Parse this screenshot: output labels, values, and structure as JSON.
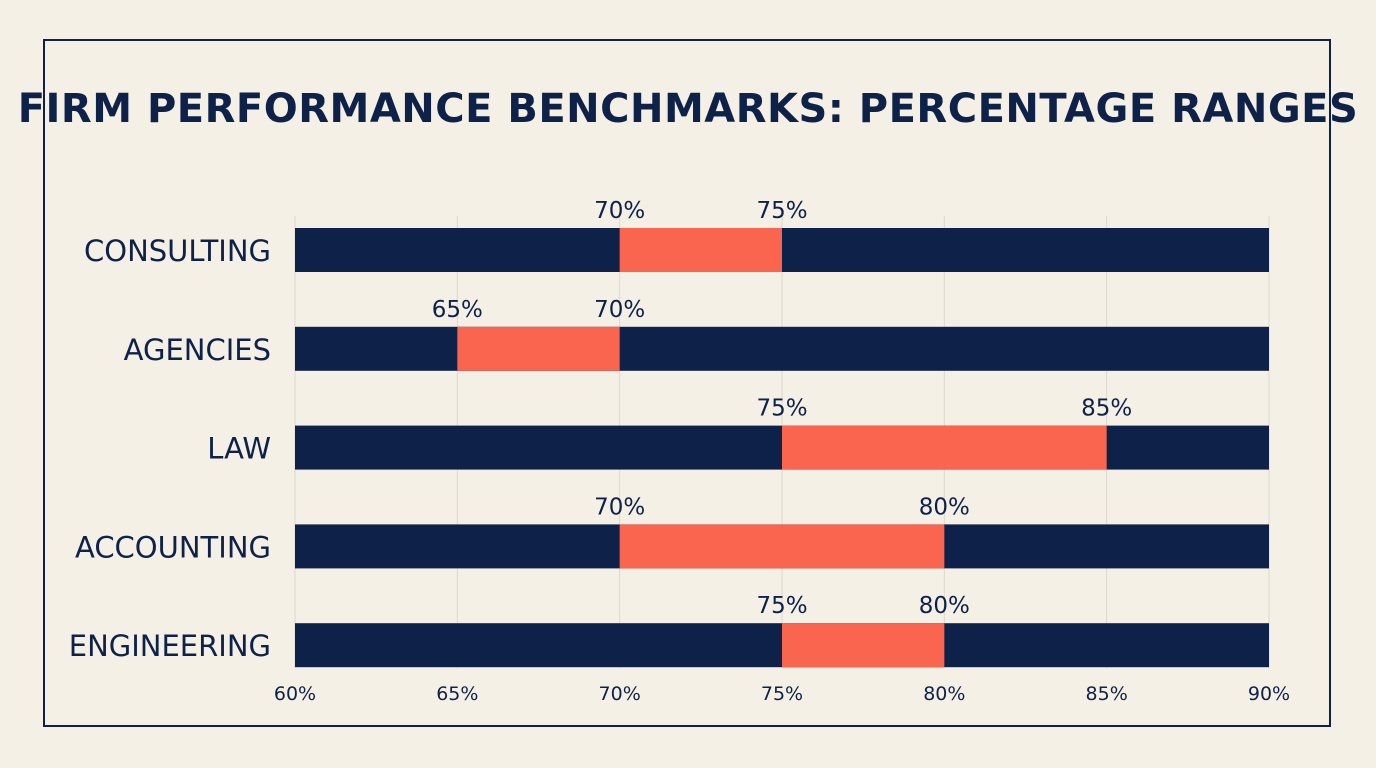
{
  "chart_data": {
    "type": "bar",
    "title": "FIRM PERFORMANCE BENCHMARKS: PERCENTAGE RANGES",
    "categories": [
      "CONSULTING",
      "AGENCIES",
      "LAW",
      "ACCOUNTING",
      "ENGINEERING"
    ],
    "ranges": [
      {
        "low": 70,
        "high": 75,
        "low_label": "70%",
        "high_label": "75%"
      },
      {
        "low": 65,
        "high": 70,
        "low_label": "65%",
        "high_label": "70%"
      },
      {
        "low": 75,
        "high": 85,
        "low_label": "75%",
        "high_label": "85%"
      },
      {
        "low": 70,
        "high": 80,
        "low_label": "70%",
        "high_label": "80%"
      },
      {
        "low": 75,
        "high": 80,
        "low_label": "75%",
        "high_label": "80%"
      }
    ],
    "xlim": [
      60,
      90
    ],
    "xticks": [
      60,
      65,
      70,
      75,
      80,
      85,
      90
    ],
    "xtick_labels": [
      "60%",
      "65%",
      "70%",
      "75%",
      "80%",
      "85%",
      "90%"
    ],
    "xlabel": "",
    "ylabel": "",
    "grid": true,
    "colors": {
      "background": "#f4f0e6",
      "bar": "#0e2249",
      "highlight": "#fa6550",
      "text": "#0e2249",
      "grid": "#ddd8cc"
    }
  }
}
